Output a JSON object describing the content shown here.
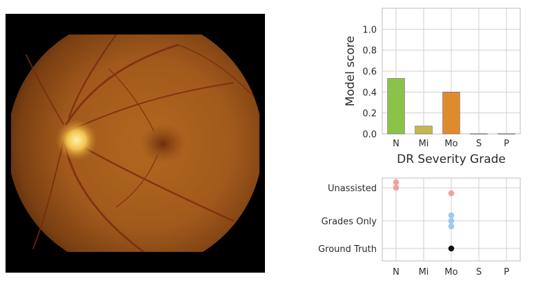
{
  "colors": {
    "grid": "#cfcfcf",
    "frame": "#bdbdbd",
    "unassisted": "#f4a0a0",
    "grades_only": "#9ec7f4",
    "ground_truth": "#111111"
  },
  "image": {
    "icon": "retinal-fundus-image"
  },
  "chart_data": [
    {
      "type": "bar",
      "categories": [
        "N",
        "Mi",
        "Mo",
        "S",
        "P"
      ],
      "values": [
        0.53,
        0.075,
        0.4,
        0.003,
        0.003
      ],
      "colors": [
        "#8bc34a",
        "#c8b550",
        "#e08a2e",
        "#bbbbbb",
        "#bbbbbb"
      ],
      "title": "",
      "xlabel": "DR Severity Grade",
      "ylabel": "Model score",
      "ylim": [
        0,
        1.2
      ],
      "yticks": [
        "0.0",
        "0.2",
        "0.4",
        "0.6",
        "0.8",
        "1.0"
      ],
      "grid": true
    },
    {
      "type": "scatter",
      "categories": [
        "N",
        "Mi",
        "Mo",
        "S",
        "P"
      ],
      "rows": [
        "Unassisted",
        "Grades Only",
        "Ground Truth"
      ],
      "points": [
        {
          "row": "Unassisted",
          "x": "N",
          "count": 2,
          "color": "#f4a0a0"
        },
        {
          "row": "Unassisted",
          "x": "Mo",
          "count": 1,
          "color": "#f4a0a0"
        },
        {
          "row": "Grades Only",
          "x": "Mo",
          "count": 3,
          "color": "#9ec7f4"
        },
        {
          "row": "Ground Truth",
          "x": "Mo",
          "count": 1,
          "color": "#111111"
        }
      ],
      "grid": true
    }
  ]
}
